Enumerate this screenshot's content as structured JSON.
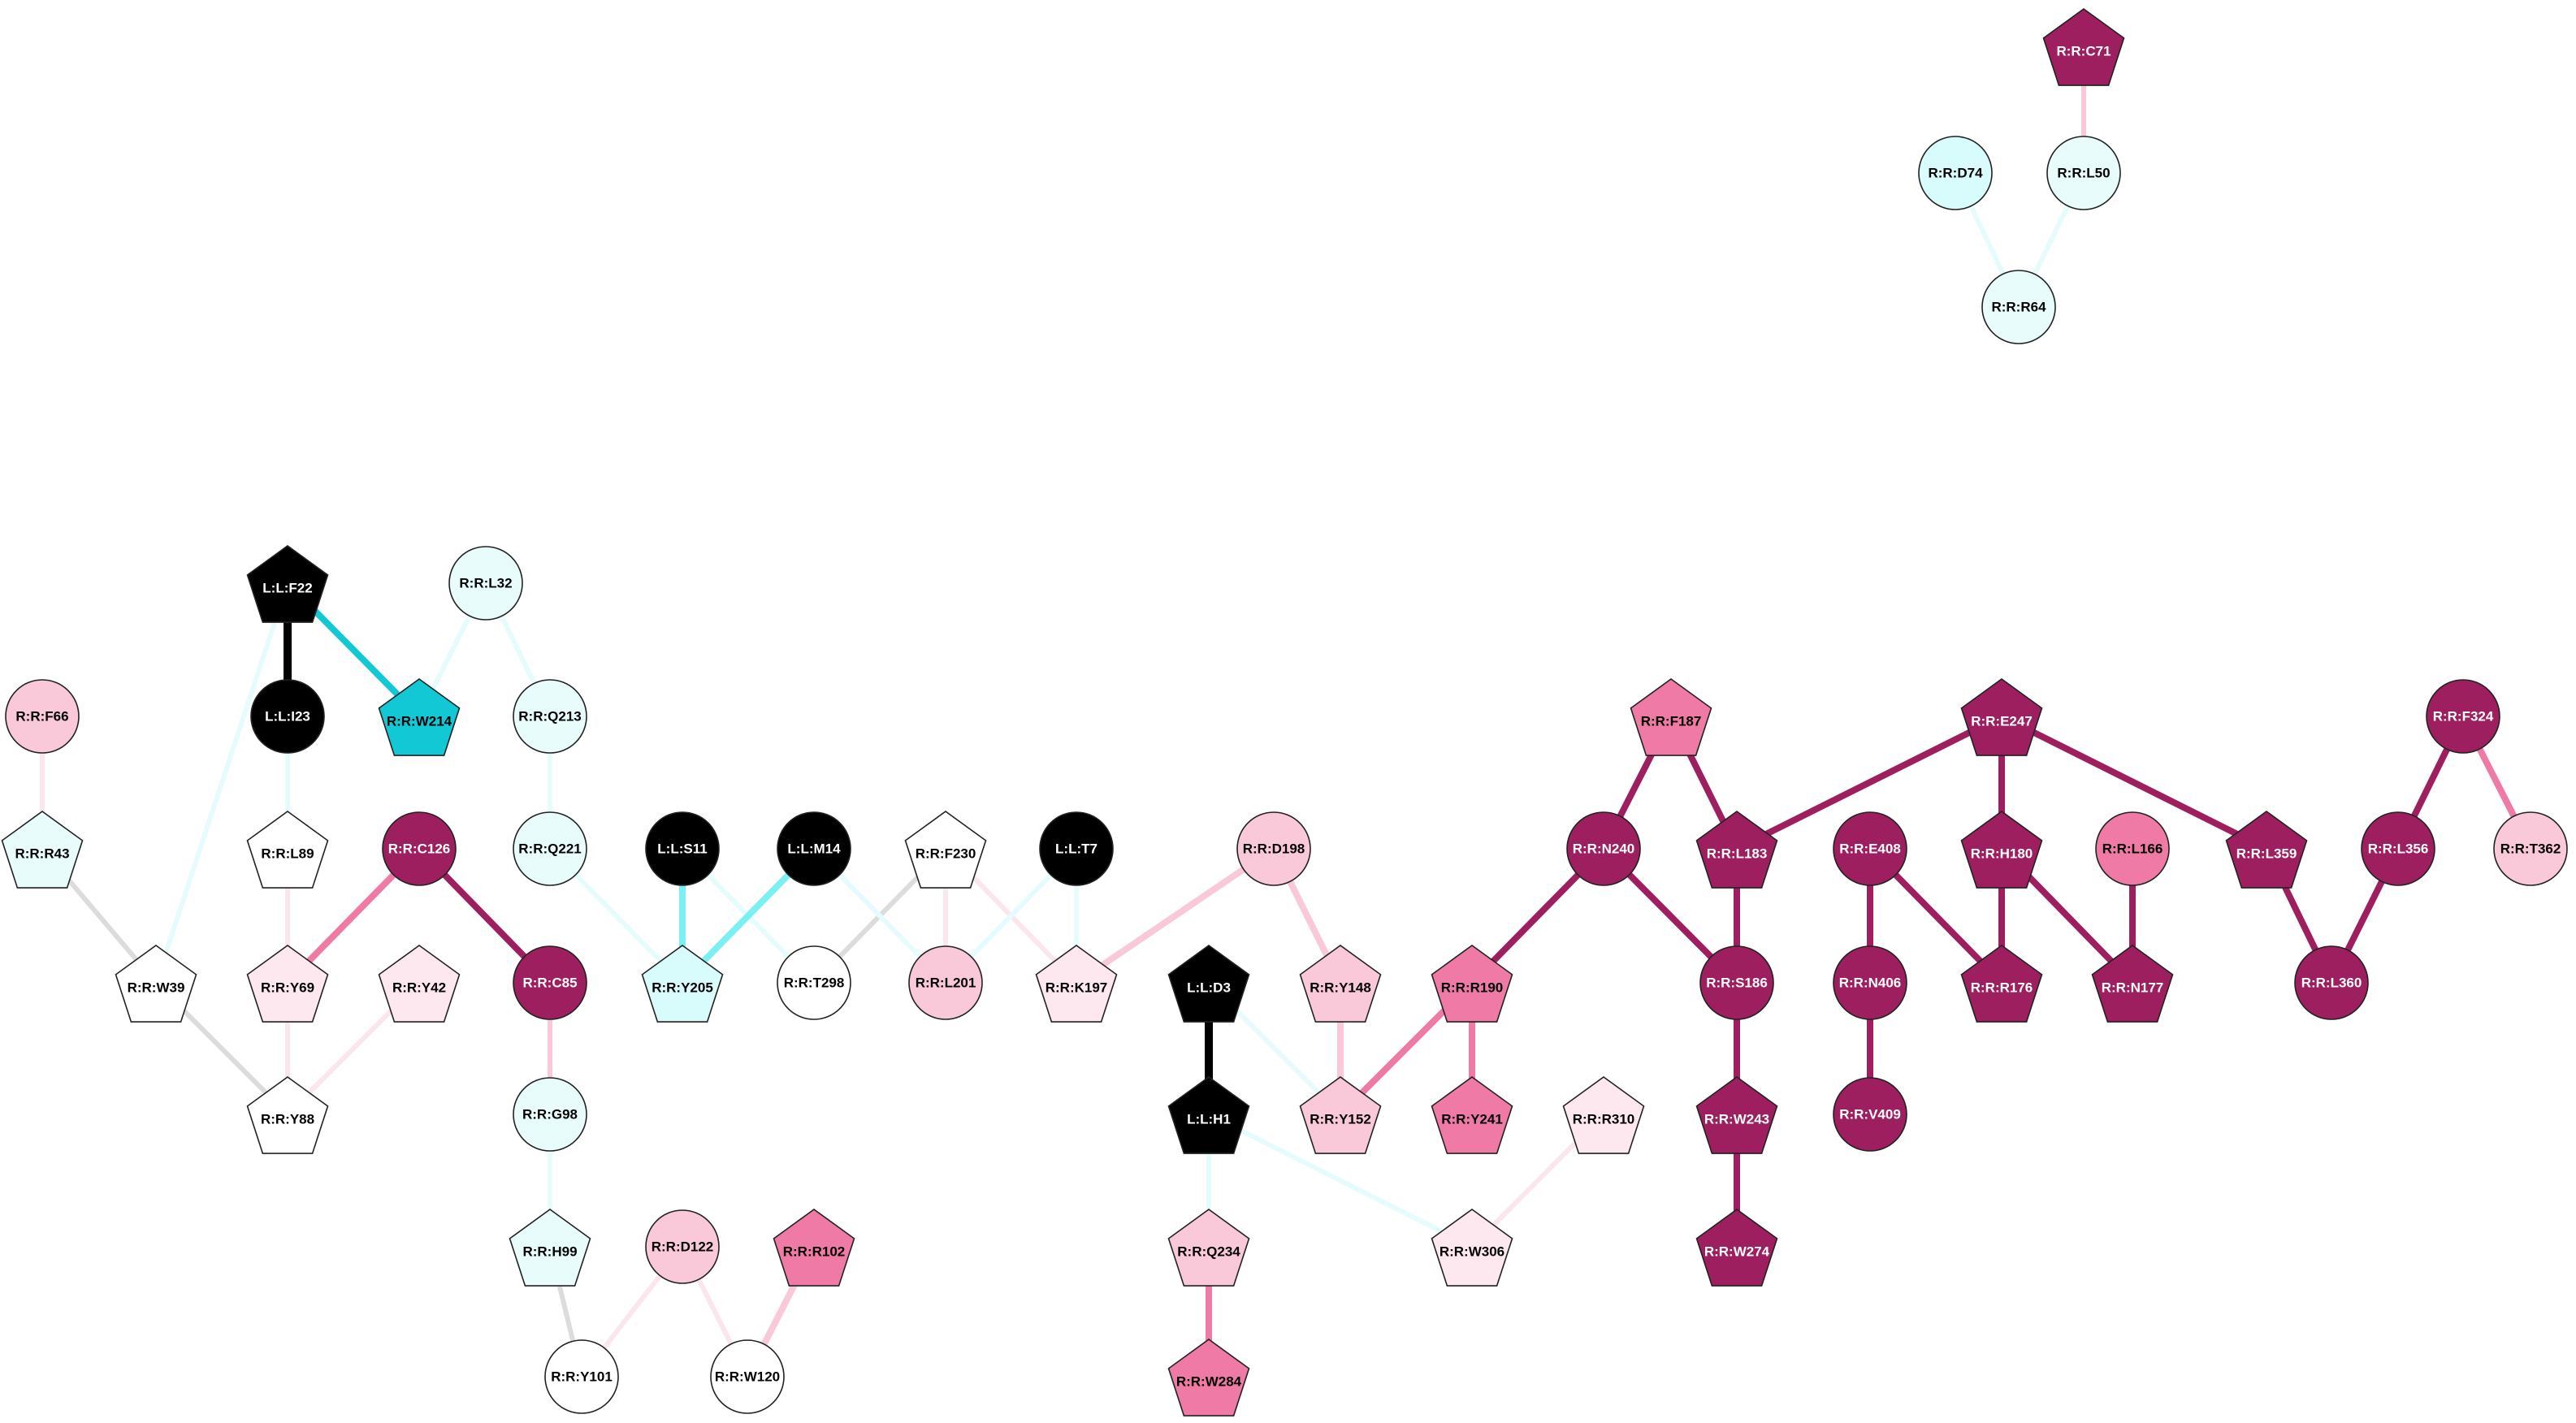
{
  "colors": {
    "black": "#000000",
    "white": "#ffffff",
    "light_cyan": "#e8fcfc",
    "cyan": "#d8fbfb",
    "teal": "#12c8d4",
    "light_pink": "#fce8ee",
    "pink": "#f9c8d9",
    "medium_pink": "#ee7aa5",
    "magenta": "#9e1f5f",
    "gray": "#dcdcdc",
    "bright_cyan": "#7cf0f0",
    "pale_cyan": "#e6fcfc",
    "pale_pink": "#fbe6ee"
  },
  "nodes": [
    {
      "id": "R:R:C71",
      "shape": "pentagon",
      "fill": "magenta",
      "text": "light"
    },
    {
      "id": "R:R:D74",
      "shape": "circle",
      "fill": "cyan",
      "text": "dark"
    },
    {
      "id": "R:R:L50",
      "shape": "circle",
      "fill": "light_cyan",
      "text": "dark"
    },
    {
      "id": "R:R:R64",
      "shape": "circle",
      "fill": "light_cyan",
      "text": "dark"
    },
    {
      "id": "L:L:F22",
      "shape": "pentagon",
      "fill": "black",
      "text": "light"
    },
    {
      "id": "R:R:L32",
      "shape": "circle",
      "fill": "light_cyan",
      "text": "dark"
    },
    {
      "id": "R:R:F66",
      "shape": "circle",
      "fill": "pink",
      "text": "dark"
    },
    {
      "id": "L:L:I23",
      "shape": "circle",
      "fill": "black",
      "text": "light"
    },
    {
      "id": "R:R:W214",
      "shape": "pentagon",
      "fill": "teal",
      "text": "dark"
    },
    {
      "id": "R:R:Q213",
      "shape": "circle",
      "fill": "light_cyan",
      "text": "dark"
    },
    {
      "id": "R:R:R43",
      "shape": "pentagon",
      "fill": "light_cyan",
      "text": "dark"
    },
    {
      "id": "R:R:L89",
      "shape": "pentagon",
      "fill": "white",
      "text": "dark"
    },
    {
      "id": "R:R:C126",
      "shape": "circle",
      "fill": "magenta",
      "text": "light"
    },
    {
      "id": "R:R:Q221",
      "shape": "circle",
      "fill": "light_cyan",
      "text": "dark"
    },
    {
      "id": "L:L:S11",
      "shape": "circle",
      "fill": "black",
      "text": "light"
    },
    {
      "id": "L:L:M14",
      "shape": "circle",
      "fill": "black",
      "text": "light"
    },
    {
      "id": "R:R:F230",
      "shape": "pentagon",
      "fill": "white",
      "text": "dark"
    },
    {
      "id": "L:L:T7",
      "shape": "circle",
      "fill": "black",
      "text": "light"
    },
    {
      "id": "R:R:D198",
      "shape": "circle",
      "fill": "pink",
      "text": "dark"
    },
    {
      "id": "R:R:W39",
      "shape": "pentagon",
      "fill": "white",
      "text": "dark"
    },
    {
      "id": "R:R:Y69",
      "shape": "pentagon",
      "fill": "light_pink",
      "text": "dark"
    },
    {
      "id": "R:R:Y42",
      "shape": "pentagon",
      "fill": "light_pink",
      "text": "dark"
    },
    {
      "id": "R:R:C85",
      "shape": "circle",
      "fill": "magenta",
      "text": "light"
    },
    {
      "id": "R:R:Y205",
      "shape": "pentagon",
      "fill": "cyan",
      "text": "dark"
    },
    {
      "id": "R:R:T298",
      "shape": "circle",
      "fill": "white",
      "text": "dark"
    },
    {
      "id": "R:R:L201",
      "shape": "circle",
      "fill": "pink",
      "text": "dark"
    },
    {
      "id": "R:R:K197",
      "shape": "pentagon",
      "fill": "light_pink",
      "text": "dark"
    },
    {
      "id": "R:R:Y148",
      "shape": "pentagon",
      "fill": "pink",
      "text": "dark"
    },
    {
      "id": "R:R:Y88",
      "shape": "pentagon",
      "fill": "white",
      "text": "dark"
    },
    {
      "id": "R:R:G98",
      "shape": "circle",
      "fill": "light_cyan",
      "text": "dark"
    },
    {
      "id": "R:R:H99",
      "shape": "pentagon",
      "fill": "light_cyan",
      "text": "dark"
    },
    {
      "id": "R:R:D122",
      "shape": "circle",
      "fill": "pink",
      "text": "dark"
    },
    {
      "id": "R:R:R102",
      "shape": "pentagon",
      "fill": "medium_pink",
      "text": "dark"
    },
    {
      "id": "R:R:Y101",
      "shape": "circle",
      "fill": "white",
      "text": "dark"
    },
    {
      "id": "R:R:W120",
      "shape": "circle",
      "fill": "white",
      "text": "dark"
    },
    {
      "id": "L:L:D3",
      "shape": "pentagon",
      "fill": "black",
      "text": "light"
    },
    {
      "id": "L:L:H1",
      "shape": "pentagon",
      "fill": "black",
      "text": "light"
    },
    {
      "id": "R:R:Y152",
      "shape": "pentagon",
      "fill": "pink",
      "text": "dark"
    },
    {
      "id": "R:R:R190",
      "shape": "pentagon",
      "fill": "medium_pink",
      "text": "dark"
    },
    {
      "id": "R:R:Y241",
      "shape": "pentagon",
      "fill": "medium_pink",
      "text": "dark"
    },
    {
      "id": "R:R:R310",
      "shape": "pentagon",
      "fill": "light_pink",
      "text": "dark"
    },
    {
      "id": "R:R:Q234",
      "shape": "pentagon",
      "fill": "pink",
      "text": "dark"
    },
    {
      "id": "R:R:W284",
      "shape": "pentagon",
      "fill": "medium_pink",
      "text": "dark"
    },
    {
      "id": "R:R:W306",
      "shape": "pentagon",
      "fill": "light_pink",
      "text": "dark"
    },
    {
      "id": "R:R:F187",
      "shape": "pentagon",
      "fill": "medium_pink",
      "text": "dark"
    },
    {
      "id": "R:R:N240",
      "shape": "circle",
      "fill": "magenta",
      "text": "light"
    },
    {
      "id": "R:R:L183",
      "shape": "pentagon",
      "fill": "magenta",
      "text": "light"
    },
    {
      "id": "R:R:S186",
      "shape": "circle",
      "fill": "magenta",
      "text": "light"
    },
    {
      "id": "R:R:W243",
      "shape": "pentagon",
      "fill": "magenta",
      "text": "light"
    },
    {
      "id": "R:R:W274",
      "shape": "pentagon",
      "fill": "magenta",
      "text": "light"
    },
    {
      "id": "R:R:E247",
      "shape": "pentagon",
      "fill": "magenta",
      "text": "light"
    },
    {
      "id": "R:R:E408",
      "shape": "circle",
      "fill": "magenta",
      "text": "light"
    },
    {
      "id": "R:R:N406",
      "shape": "circle",
      "fill": "magenta",
      "text": "light"
    },
    {
      "id": "R:R:V409",
      "shape": "circle",
      "fill": "magenta",
      "text": "light"
    },
    {
      "id": "R:R:H180",
      "shape": "pentagon",
      "fill": "magenta",
      "text": "light"
    },
    {
      "id": "R:R:R176",
      "shape": "pentagon",
      "fill": "magenta",
      "text": "light"
    },
    {
      "id": "R:R:L166",
      "shape": "circle",
      "fill": "medium_pink",
      "text": "dark"
    },
    {
      "id": "R:R:N177",
      "shape": "pentagon",
      "fill": "magenta",
      "text": "light"
    },
    {
      "id": "R:R:L359",
      "shape": "pentagon",
      "fill": "magenta",
      "text": "light"
    },
    {
      "id": "R:R:F324",
      "shape": "circle",
      "fill": "magenta",
      "text": "light"
    },
    {
      "id": "R:R:L356",
      "shape": "circle",
      "fill": "magenta",
      "text": "light"
    },
    {
      "id": "R:R:T362",
      "shape": "circle",
      "fill": "pink",
      "text": "dark"
    },
    {
      "id": "R:R:L360",
      "shape": "circle",
      "fill": "magenta",
      "text": "light"
    }
  ],
  "edges": [
    {
      "source": "R:R:C71",
      "target": "R:R:L50",
      "color": "pink",
      "weight": 3
    },
    {
      "source": "R:R:D74",
      "target": "R:R:R64",
      "color": "pale_cyan",
      "weight": 3
    },
    {
      "source": "R:R:L50",
      "target": "R:R:R64",
      "color": "pale_cyan",
      "weight": 3
    },
    {
      "source": "L:L:F22",
      "target": "L:L:I23",
      "color": "black",
      "weight": 5
    },
    {
      "source": "L:L:F22",
      "target": "R:R:W214",
      "color": "teal",
      "weight": 4
    },
    {
      "source": "L:L:F22",
      "target": "R:R:W39",
      "color": "pale_cyan",
      "weight": 3
    },
    {
      "source": "R:R:L32",
      "target": "R:R:W214",
      "color": "pale_cyan",
      "weight": 3
    },
    {
      "source": "R:R:L32",
      "target": "R:R:Q213",
      "color": "pale_cyan",
      "weight": 3
    },
    {
      "source": "R:R:Q213",
      "target": "R:R:Q221",
      "color": "pale_cyan",
      "weight": 3
    },
    {
      "source": "R:R:Q221",
      "target": "R:R:Y205",
      "color": "pale_cyan",
      "weight": 3
    },
    {
      "source": "L:L:I23",
      "target": "R:R:L89",
      "color": "pale_cyan",
      "weight": 3
    },
    {
      "source": "R:R:F66",
      "target": "R:R:R43",
      "color": "pale_pink",
      "weight": 3
    },
    {
      "source": "R:R:R43",
      "target": "R:R:W39",
      "color": "gray",
      "weight": 3
    },
    {
      "source": "R:R:W39",
      "target": "R:R:Y88",
      "color": "gray",
      "weight": 3
    },
    {
      "source": "R:R:L89",
      "target": "R:R:Y69",
      "color": "pale_pink",
      "weight": 3
    },
    {
      "source": "R:R:C126",
      "target": "R:R:Y69",
      "color": "medium_pink",
      "weight": 4
    },
    {
      "source": "R:R:C126",
      "target": "R:R:C85",
      "color": "magenta",
      "weight": 4
    },
    {
      "source": "R:R:Y69",
      "target": "R:R:Y88",
      "color": "pale_pink",
      "weight": 3
    },
    {
      "source": "R:R:Y42",
      "target": "R:R:Y88",
      "color": "pale_pink",
      "weight": 3
    },
    {
      "source": "R:R:C85",
      "target": "R:R:G98",
      "color": "pink",
      "weight": 3
    },
    {
      "source": "R:R:G98",
      "target": "R:R:H99",
      "color": "pale_cyan",
      "weight": 3
    },
    {
      "source": "R:R:H99",
      "target": "R:R:Y101",
      "color": "gray",
      "weight": 3
    },
    {
      "source": "R:R:D122",
      "target": "R:R:Y101",
      "color": "pale_pink",
      "weight": 3
    },
    {
      "source": "R:R:D122",
      "target": "R:R:W120",
      "color": "pale_pink",
      "weight": 3
    },
    {
      "source": "R:R:R102",
      "target": "R:R:W120",
      "color": "pink",
      "weight": 4
    },
    {
      "source": "L:L:S11",
      "target": "R:R:Y205",
      "color": "bright_cyan",
      "weight": 4
    },
    {
      "source": "L:L:S11",
      "target": "R:R:T298",
      "color": "pale_cyan",
      "weight": 3
    },
    {
      "source": "L:L:M14",
      "target": "R:R:Y205",
      "color": "bright_cyan",
      "weight": 4
    },
    {
      "source": "R:R:F230",
      "target": "R:R:T298",
      "color": "gray",
      "weight": 3
    },
    {
      "source": "R:R:F230",
      "target": "R:R:L201",
      "color": "pale_pink",
      "weight": 3
    },
    {
      "source": "R:R:F230",
      "target": "R:R:K197",
      "color": "pale_pink",
      "weight": 3
    },
    {
      "source": "L:L:M14",
      "target": "R:R:L201",
      "color": "pale_cyan",
      "weight": 3
    },
    {
      "source": "L:L:T7",
      "target": "R:R:K197",
      "color": "pale_cyan",
      "weight": 3
    },
    {
      "source": "L:L:T7",
      "target": "R:R:L201",
      "color": "pale_cyan",
      "weight": 3
    },
    {
      "source": "R:R:D198",
      "target": "R:R:K197",
      "color": "pink",
      "weight": 4
    },
    {
      "source": "R:R:D198",
      "target": "R:R:Y148",
      "color": "pink",
      "weight": 4
    },
    {
      "source": "R:R:Y148",
      "target": "R:R:Y152",
      "color": "pink",
      "weight": 4
    },
    {
      "source": "L:L:D3",
      "target": "L:L:H1",
      "color": "black",
      "weight": 5
    },
    {
      "source": "L:L:D3",
      "target": "R:R:Y152",
      "color": "pale_cyan",
      "weight": 3
    },
    {
      "source": "R:R:R190",
      "target": "R:R:Y152",
      "color": "medium_pink",
      "weight": 4
    },
    {
      "source": "R:R:R190",
      "target": "R:R:Y241",
      "color": "medium_pink",
      "weight": 4
    },
    {
      "source": "R:R:N240",
      "target": "R:R:R190",
      "color": "magenta",
      "weight": 4
    },
    {
      "source": "L:L:H1",
      "target": "R:R:Q234",
      "color": "pale_cyan",
      "weight": 3
    },
    {
      "source": "L:L:H1",
      "target": "R:R:W306",
      "color": "pale_cyan",
      "weight": 3
    },
    {
      "source": "R:R:R310",
      "target": "R:R:W306",
      "color": "pale_pink",
      "weight": 3
    },
    {
      "source": "R:R:Q234",
      "target": "R:R:W284",
      "color": "medium_pink",
      "weight": 4
    },
    {
      "source": "R:R:F187",
      "target": "R:R:N240",
      "color": "magenta",
      "weight": 4
    },
    {
      "source": "R:R:F187",
      "target": "R:R:L183",
      "color": "magenta",
      "weight": 4
    },
    {
      "source": "R:R:N240",
      "target": "R:R:S186",
      "color": "magenta",
      "weight": 4
    },
    {
      "source": "R:R:L183",
      "target": "R:R:S186",
      "color": "magenta",
      "weight": 4
    },
    {
      "source": "R:R:S186",
      "target": "R:R:W243",
      "color": "magenta",
      "weight": 4
    },
    {
      "source": "R:R:W243",
      "target": "R:R:W274",
      "color": "magenta",
      "weight": 4
    },
    {
      "source": "R:R:E247",
      "target": "R:R:L183",
      "color": "magenta",
      "weight": 4
    },
    {
      "source": "R:R:E247",
      "target": "R:R:H180",
      "color": "magenta",
      "weight": 4
    },
    {
      "source": "R:R:E247",
      "target": "R:R:L359",
      "color": "magenta",
      "weight": 4
    },
    {
      "source": "R:R:E408",
      "target": "R:R:N406",
      "color": "magenta",
      "weight": 4
    },
    {
      "source": "R:R:E408",
      "target": "R:R:R176",
      "color": "magenta",
      "weight": 4
    },
    {
      "source": "R:R:N406",
      "target": "R:R:V409",
      "color": "magenta",
      "weight": 4
    },
    {
      "source": "R:R:H180",
      "target": "R:R:R176",
      "color": "magenta",
      "weight": 4
    },
    {
      "source": "R:R:H180",
      "target": "R:R:N177",
      "color": "magenta",
      "weight": 4
    },
    {
      "source": "R:R:L166",
      "target": "R:R:N177",
      "color": "magenta",
      "weight": 4
    },
    {
      "source": "R:R:L359",
      "target": "R:R:L360",
      "color": "magenta",
      "weight": 4
    },
    {
      "source": "R:R:F324",
      "target": "R:R:L356",
      "color": "magenta",
      "weight": 4
    },
    {
      "source": "R:R:F324",
      "target": "R:R:T362",
      "color": "medium_pink",
      "weight": 4
    },
    {
      "source": "R:R:L356",
      "target": "R:R:L360",
      "color": "magenta",
      "weight": 4
    }
  ]
}
